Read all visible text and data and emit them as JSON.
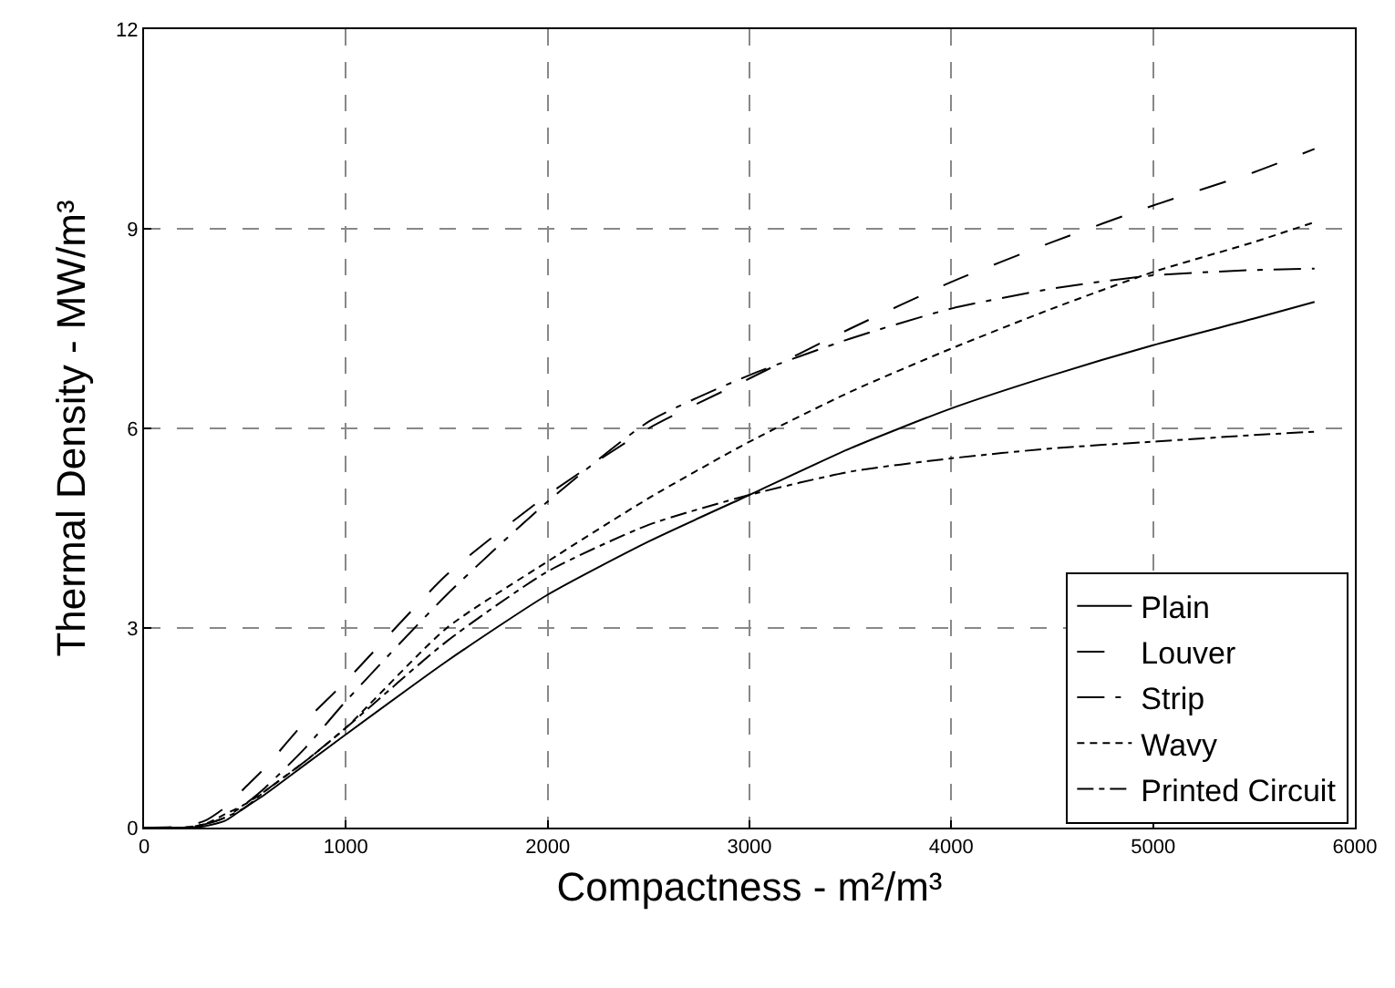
{
  "chart_data": {
    "type": "line",
    "xlabel": "Compactness - m²/m³",
    "ylabel": "Thermal Density - MW/m³",
    "xlim": [
      0,
      6000
    ],
    "xticks": [
      0,
      1000,
      2000,
      3000,
      4000,
      5000,
      6000
    ],
    "ylim": [
      0,
      12
    ],
    "yticks": [
      0,
      3,
      6,
      9,
      12
    ],
    "grid": true,
    "legend": "bottom right",
    "marker": "none",
    "x": [
      0,
      200,
      300,
      400,
      500,
      600,
      800,
      1000,
      1500,
      2000,
      2500,
      3000,
      3500,
      4000,
      4500,
      5000,
      5500,
      5800
    ],
    "series": [
      {
        "name": "Plain",
        "color": "#000000",
        "line_style": "solid",
        "values": [
          0,
          0,
          0.02,
          0.1,
          0.3,
          0.5,
          0.95,
          1.4,
          2.5,
          3.5,
          4.3,
          5.0,
          5.7,
          6.3,
          6.8,
          7.25,
          7.65,
          7.9
        ]
      },
      {
        "name": "Louver",
        "color": "#000000",
        "line_style": "longdash",
        "values": [
          0,
          0.02,
          0.1,
          0.3,
          0.6,
          0.9,
          1.6,
          2.2,
          3.8,
          5.0,
          6.0,
          6.75,
          7.5,
          8.2,
          8.8,
          9.35,
          9.85,
          10.2
        ]
      },
      {
        "name": "Strip",
        "color": "#000000",
        "line_style": "longdashdot",
        "values": [
          0,
          0,
          0.05,
          0.15,
          0.35,
          0.6,
          1.2,
          1.9,
          3.5,
          4.9,
          6.1,
          6.8,
          7.35,
          7.8,
          8.1,
          8.3,
          8.38,
          8.4
        ]
      },
      {
        "name": "Wavy",
        "color": "#000000",
        "line_style": "dashed",
        "values": [
          0,
          0,
          0.05,
          0.2,
          0.35,
          0.55,
          1.0,
          1.5,
          3.0,
          4.0,
          4.95,
          5.8,
          6.55,
          7.2,
          7.8,
          8.35,
          8.8,
          9.1
        ]
      },
      {
        "name": "Printed Circuit",
        "color": "#000000",
        "line_style": "dashdot",
        "values": [
          0,
          0,
          0.05,
          0.15,
          0.3,
          0.55,
          1.0,
          1.5,
          2.8,
          3.85,
          4.55,
          5.0,
          5.35,
          5.55,
          5.7,
          5.8,
          5.9,
          5.95
        ]
      }
    ]
  }
}
